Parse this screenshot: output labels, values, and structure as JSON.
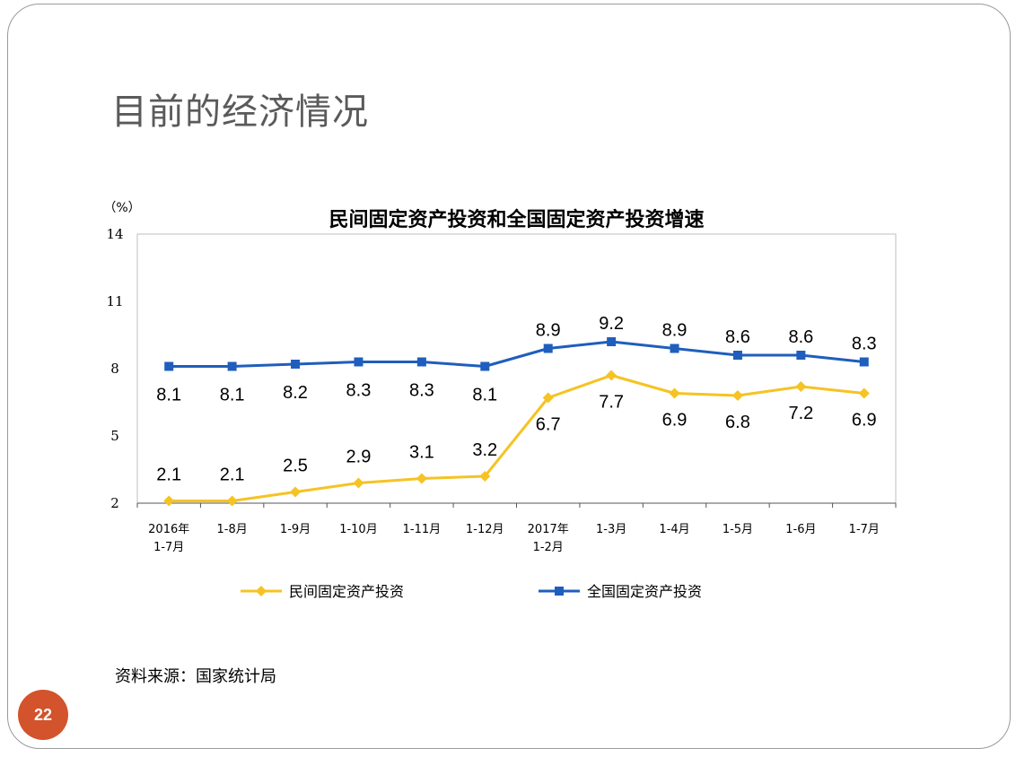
{
  "slide": {
    "title": "目前的经济情况",
    "source": "资料来源：国家统计局",
    "page_number": "22"
  },
  "chart_data": {
    "type": "line",
    "title": "民间固定资产投资和全国固定资产投资增速",
    "unit": "（%）",
    "categories": [
      [
        "2016年",
        "1-7月"
      ],
      [
        "1-8月"
      ],
      [
        "1-9月"
      ],
      [
        "1-10月"
      ],
      [
        "1-11月"
      ],
      [
        "1-12月"
      ],
      [
        "2017年",
        "1-2月"
      ],
      [
        "1-3月"
      ],
      [
        "1-4月"
      ],
      [
        "1-5月"
      ],
      [
        "1-6月"
      ],
      [
        "1-7月"
      ]
    ],
    "ylim": [
      2,
      14
    ],
    "yticks": [
      2,
      5,
      8,
      11,
      14
    ],
    "grid": false,
    "legend_position": "bottom",
    "series": [
      {
        "name": "民间固定资产投资",
        "color": "#f5c323",
        "marker": "diamond",
        "values": [
          2.1,
          2.1,
          2.5,
          2.9,
          3.1,
          3.2,
          6.7,
          7.7,
          6.9,
          6.8,
          7.2,
          6.9
        ],
        "label_position": "above-then-below"
      },
      {
        "name": "全国固定资产投资",
        "color": "#1f5ebd",
        "marker": "square",
        "values": [
          8.1,
          8.1,
          8.2,
          8.3,
          8.3,
          8.1,
          8.9,
          9.2,
          8.9,
          8.6,
          8.6,
          8.3
        ]
      }
    ]
  }
}
